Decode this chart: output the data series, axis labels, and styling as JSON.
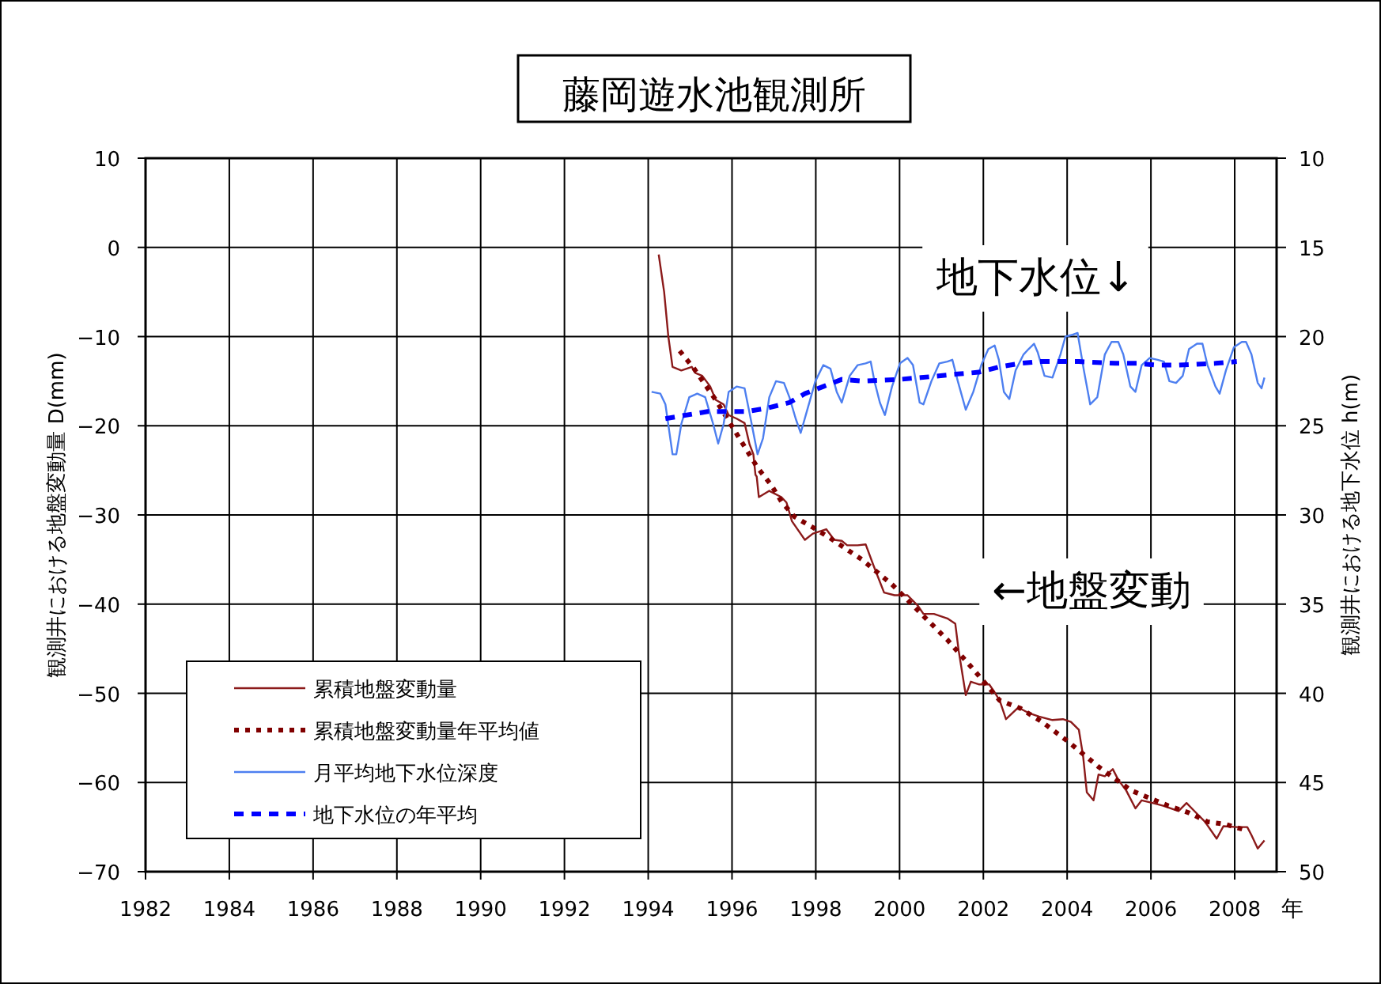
{
  "chart_data": {
    "type": "line",
    "title": "藤岡遊水池観測所",
    "xlabel": "年",
    "ylabel": "観測井における地盤変動量 D(mm)",
    "y2label": "観測井における地下水位 h(m)",
    "xlim": [
      1982,
      2009
    ],
    "xticks": [
      1982,
      1984,
      1986,
      1988,
      1990,
      1992,
      1994,
      1996,
      1998,
      2000,
      2002,
      2004,
      2006,
      2008
    ],
    "ylim": [
      -70,
      10
    ],
    "yticks": [
      10,
      0,
      -10,
      -20,
      -30,
      -40,
      -50,
      -60,
      -70
    ],
    "y2lim": [
      50,
      10
    ],
    "y2ticks": [
      10,
      15,
      20,
      25,
      30,
      35,
      40,
      45,
      50
    ],
    "grid": true,
    "legend": "bottom left",
    "marker": "none",
    "annotations": [
      "地下水位↓",
      "←地盤変動"
    ],
    "series": [
      {
        "name": "累積地盤変動量",
        "color": "#8b1a1a",
        "line_style": "solid",
        "x": [
          1994.25,
          1994.38,
          1994.48,
          1994.58,
          1994.79,
          1995.04,
          1995.13,
          1995.29,
          1995.48,
          1995.61,
          1995.8,
          1995.92,
          1996.11,
          1996.3,
          1996.42,
          1996.51,
          1996.56,
          1996.59,
          1996.64,
          1996.89,
          1997.18,
          1997.3,
          1997.43,
          1997.74,
          1997.93,
          1998.25,
          1998.44,
          1998.62,
          1998.75,
          1999.0,
          1999.19,
          1999.38,
          1999.63,
          1999.88,
          2000.19,
          2000.44,
          2000.57,
          2000.82,
          2001.14,
          2001.33,
          2001.41,
          2001.58,
          2001.7,
          2001.89,
          2002.14,
          2002.27,
          2002.39,
          2002.54,
          2002.83,
          2003.08,
          2003.33,
          2003.65,
          2003.9,
          2004.09,
          2004.28,
          2004.38,
          2004.47,
          2004.63,
          2004.75,
          2004.9,
          2005.09,
          2005.22,
          2005.41,
          2005.63,
          2005.78,
          2006.04,
          2006.29,
          2006.66,
          2006.85,
          2007.1,
          2007.29,
          2007.57,
          2007.73,
          2008.05,
          2008.3,
          2008.4,
          2008.55,
          2008.71
        ],
        "values": [
          -0.8,
          -5.0,
          -10.0,
          -13.4,
          -13.8,
          -13.4,
          -14.1,
          -14.4,
          -15.6,
          -17.1,
          -17.6,
          -18.8,
          -19.2,
          -19.7,
          -22.1,
          -23.2,
          -25.5,
          -25.7,
          -28.0,
          -27.3,
          -28.0,
          -28.6,
          -30.7,
          -32.8,
          -32.1,
          -31.6,
          -32.8,
          -32.9,
          -33.4,
          -33.4,
          -33.3,
          -35.7,
          -38.7,
          -39.0,
          -39.0,
          -40.2,
          -41.1,
          -41.1,
          -41.6,
          -42.2,
          -45.2,
          -50.2,
          -48.7,
          -49.0,
          -49.0,
          -49.9,
          -50.8,
          -52.9,
          -51.6,
          -52.2,
          -52.6,
          -53.0,
          -52.9,
          -53.2,
          -54.1,
          -57.0,
          -61.1,
          -62.0,
          -59.1,
          -59.3,
          -58.5,
          -59.7,
          -60.9,
          -62.9,
          -62.0,
          -62.3,
          -62.6,
          -63.2,
          -62.3,
          -63.5,
          -64.4,
          -66.3,
          -64.9,
          -65.0,
          -65.0,
          -65.9,
          -67.4,
          -66.5
        ]
      },
      {
        "name": "累積地盤変動量年平均値",
        "color": "#800000",
        "line_style": "dotted",
        "x": [
          1994.75,
          1995.08,
          1995.61,
          1996.11,
          1996.36,
          1996.61,
          1996.93,
          1997.18,
          1997.49,
          1997.93,
          1998.31,
          1999.1,
          1999.82,
          2000.82,
          2001.14,
          2001.76,
          2002.39,
          2002.89,
          2003.4,
          2004.02,
          2004.74,
          2005.53,
          2006.41,
          2006.91,
          2007.35,
          2007.79,
          2008.23
        ],
        "values": [
          -11.6,
          -13.5,
          -17.1,
          -20.9,
          -22.8,
          -24.7,
          -26.6,
          -28.5,
          -30.2,
          -31.4,
          -32.5,
          -35.0,
          -37.8,
          -42.5,
          -44.0,
          -47.3,
          -50.8,
          -51.7,
          -53.2,
          -55.4,
          -58.2,
          -60.9,
          -62.6,
          -63.4,
          -64.4,
          -64.7,
          -65.3
        ]
      },
      {
        "name": "月平均地下水位深度",
        "color": "#4d7ff0",
        "line_style": "solid",
        "axis": "y2",
        "x": [
          1994.08,
          1994.29,
          1994.41,
          1994.58,
          1994.67,
          1994.79,
          1994.98,
          1995.17,
          1995.36,
          1995.55,
          1995.67,
          1995.8,
          1995.92,
          1996.11,
          1996.3,
          1996.42,
          1996.61,
          1996.74,
          1996.89,
          1997.05,
          1997.24,
          1997.37,
          1997.52,
          1997.64,
          1997.81,
          1997.99,
          1998.18,
          1998.35,
          1998.5,
          1998.62,
          1998.81,
          1999.0,
          1999.19,
          1999.31,
          1999.4,
          1999.53,
          1999.65,
          1999.82,
          2000.01,
          2000.19,
          2000.32,
          2000.48,
          2000.57,
          2000.76,
          2000.95,
          2001.14,
          2001.26,
          2001.39,
          2001.58,
          2001.76,
          2001.95,
          2002.12,
          2002.27,
          2002.37,
          2002.49,
          2002.62,
          2002.77,
          2002.96,
          2003.08,
          2003.21,
          2003.3,
          2003.46,
          2003.65,
          2003.84,
          2003.96,
          2004.13,
          2004.25,
          2004.4,
          2004.55,
          2004.72,
          2004.9,
          2005.06,
          2005.22,
          2005.34,
          2005.51,
          2005.63,
          2005.78,
          2005.97,
          2006.16,
          2006.31,
          2006.44,
          2006.6,
          2006.76,
          2006.91,
          2007.1,
          2007.23,
          2007.35,
          2007.54,
          2007.64,
          2007.79,
          2007.98,
          2008.17,
          2008.27,
          2008.4,
          2008.55,
          2008.64,
          2008.71
        ],
        "values": [
          23.1,
          23.2,
          23.8,
          26.6,
          26.6,
          24.9,
          23.4,
          23.2,
          23.4,
          24.9,
          26.0,
          24.9,
          23.1,
          22.8,
          22.9,
          24.3,
          26.6,
          25.7,
          23.4,
          22.5,
          22.6,
          23.4,
          24.6,
          25.4,
          24.0,
          22.5,
          21.6,
          21.8,
          23.1,
          23.7,
          22.2,
          21.6,
          21.5,
          21.4,
          22.5,
          23.7,
          24.4,
          22.8,
          21.5,
          21.2,
          21.6,
          23.7,
          23.8,
          22.5,
          21.5,
          21.4,
          21.3,
          22.5,
          24.1,
          23.1,
          21.6,
          20.7,
          20.5,
          21.3,
          23.1,
          23.5,
          21.9,
          21.0,
          20.7,
          20.4,
          20.9,
          22.2,
          22.3,
          21.0,
          20.0,
          19.9,
          19.8,
          21.9,
          23.8,
          23.4,
          21.0,
          20.3,
          20.3,
          21.0,
          22.8,
          23.1,
          21.6,
          21.2,
          21.3,
          21.4,
          22.5,
          22.6,
          22.2,
          20.7,
          20.4,
          20.4,
          21.6,
          22.8,
          23.2,
          21.9,
          20.6,
          20.3,
          20.3,
          21.0,
          22.6,
          22.9,
          22.3
        ]
      },
      {
        "name": "地下水位の年平均",
        "color": "#0000ff",
        "line_style": "dashed",
        "axis": "y2",
        "x": [
          1994.41,
          1995.42,
          1995.92,
          1996.36,
          1996.86,
          1997.37,
          1997.74,
          1998.18,
          1998.62,
          1999.13,
          2000.01,
          2000.51,
          2001.39,
          2001.89,
          2002.39,
          2002.89,
          2003.33,
          2003.77,
          2004.28,
          2005.16,
          2005.66,
          2006.16,
          2006.66,
          2007.54,
          2008.05
        ],
        "values": [
          24.6,
          24.2,
          24.2,
          24.2,
          24.0,
          23.7,
          23.2,
          22.8,
          22.4,
          22.5,
          22.4,
          22.3,
          22.1,
          22.0,
          21.7,
          21.5,
          21.4,
          21.4,
          21.4,
          21.5,
          21.5,
          21.6,
          21.6,
          21.5,
          21.4
        ]
      }
    ]
  }
}
